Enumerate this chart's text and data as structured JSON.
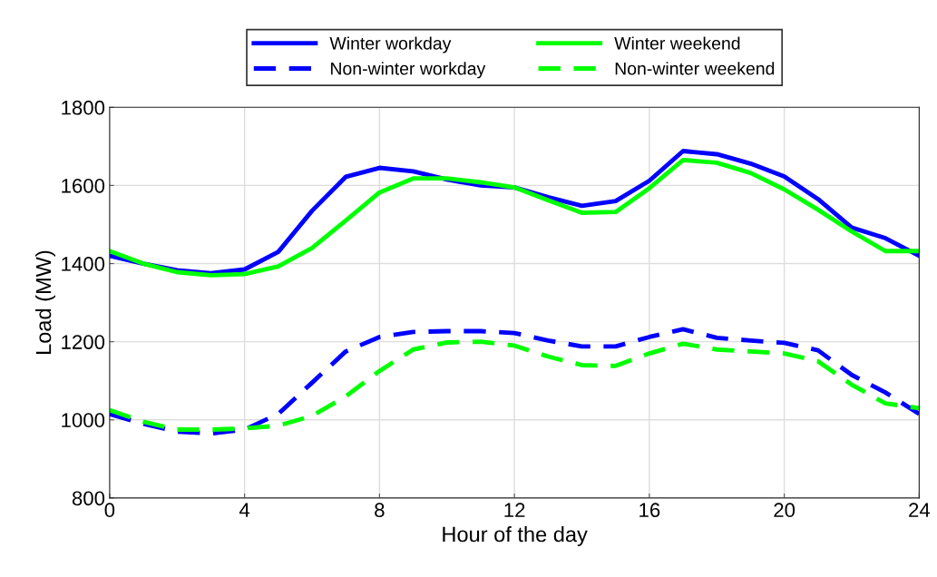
{
  "chart_data": {
    "type": "line",
    "xlabel": "Hour of the day",
    "ylabel": "Load (MW)",
    "x": [
      0,
      1,
      2,
      3,
      4,
      5,
      6,
      7,
      8,
      9,
      10,
      11,
      12,
      13,
      14,
      15,
      16,
      17,
      18,
      19,
      20,
      21,
      22,
      23,
      24
    ],
    "xlim": [
      0,
      24
    ],
    "xticks": [
      0,
      4,
      8,
      12,
      16,
      20,
      24
    ],
    "ylim": [
      800,
      1800
    ],
    "yticks": [
      800,
      1000,
      1200,
      1400,
      1600,
      1800
    ],
    "grid": true,
    "legend": "top",
    "marker": "none",
    "series": [
      {
        "name": "Winter workday",
        "color": "#0000ff",
        "line_style": "solid",
        "values": [
          1420,
          1400,
          1383,
          1375,
          1385,
          1430,
          1535,
          1622,
          1645,
          1636,
          1615,
          1600,
          1595,
          1570,
          1548,
          1560,
          1612,
          1688,
          1680,
          1656,
          1623,
          1565,
          1492,
          1465,
          1420
        ]
      },
      {
        "name": "Non-winter workday",
        "color": "#0000ff",
        "line_style": "dashed",
        "values": [
          1015,
          990,
          970,
          965,
          975,
          1015,
          1095,
          1175,
          1212,
          1225,
          1227,
          1227,
          1222,
          1203,
          1188,
          1188,
          1212,
          1232,
          1210,
          1203,
          1197,
          1178,
          1115,
          1070,
          1015
        ]
      },
      {
        "name": "Winter weekend",
        "color": "#00ff00",
        "line_style": "solid",
        "values": [
          1432,
          1400,
          1378,
          1370,
          1373,
          1393,
          1440,
          1510,
          1582,
          1618,
          1618,
          1608,
          1595,
          1562,
          1530,
          1532,
          1593,
          1665,
          1658,
          1632,
          1590,
          1538,
          1482,
          1432,
          1432
        ]
      },
      {
        "name": "Non-winter weekend",
        "color": "#00ff00",
        "line_style": "dashed",
        "values": [
          1025,
          995,
          975,
          975,
          978,
          985,
          1010,
          1060,
          1125,
          1180,
          1198,
          1200,
          1190,
          1162,
          1140,
          1138,
          1170,
          1195,
          1180,
          1175,
          1170,
          1150,
          1090,
          1042,
          1030
        ]
      }
    ]
  }
}
